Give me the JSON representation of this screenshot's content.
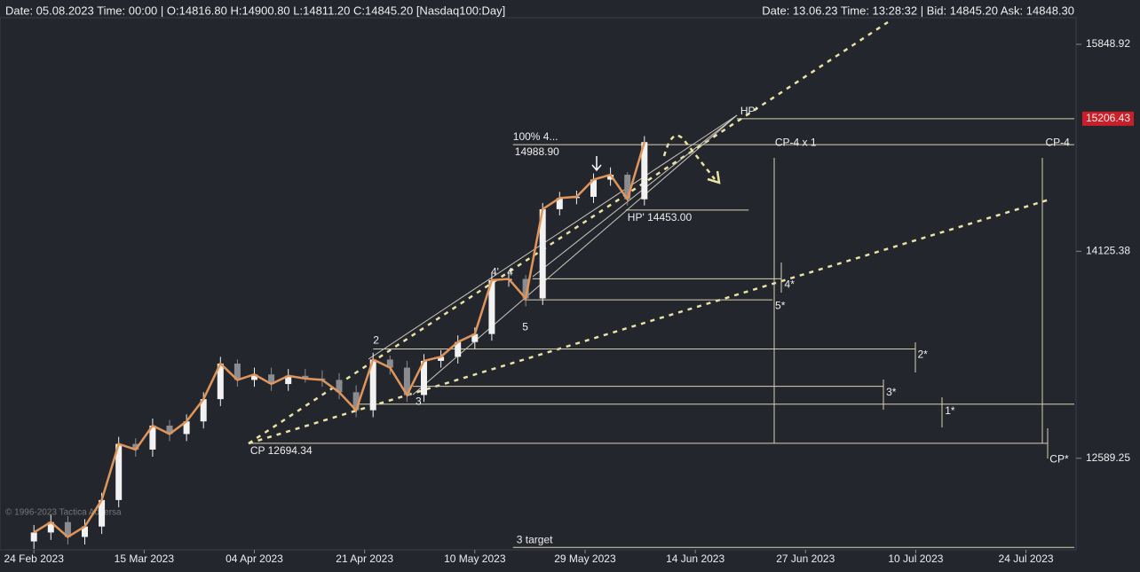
{
  "header": {
    "left": "Date: 05.08.2023 Time: 00:00 | O:14816.80 H:14900.80 L:14811.20 C:14845.20  [Nasdaq100:Day]",
    "right": "Date: 13.06.23 Time: 13:28:32 | Bid: 14845.20 Ask: 14848.30",
    "copyright": "© 1996-2023 Tactica Adversa"
  },
  "chart_data": {
    "type": "candlestick",
    "log_scale": true,
    "x": [
      0,
      2,
      4,
      6,
      8,
      10,
      12,
      14,
      16,
      18,
      20,
      22,
      24,
      26,
      28,
      30,
      32,
      34,
      36,
      38,
      40,
      42,
      44,
      46,
      48,
      50,
      52,
      54,
      56,
      58,
      60,
      62,
      64,
      66,
      68,
      70,
      72
    ],
    "open": [
      12020,
      12080,
      12150,
      12050,
      12120,
      12300,
      12690,
      12650,
      12820,
      12760,
      12850,
      13010,
      13270,
      13150,
      13190,
      13120,
      13180,
      13160,
      13150,
      13060,
      12930,
      13300,
      13240,
      13040,
      13290,
      13320,
      13430,
      13490,
      13900,
      13910,
      13760,
      14460,
      14550,
      14560,
      14700,
      14740,
      14540
    ],
    "high": [
      12130,
      12200,
      12190,
      12170,
      12350,
      12740,
      12730,
      12870,
      12860,
      12900,
      13060,
      13320,
      13300,
      13240,
      13240,
      13230,
      13230,
      13220,
      13200,
      13110,
      13350,
      13330,
      13290,
      13340,
      13370,
      13480,
      13540,
      13950,
      13960,
      13940,
      14510,
      14600,
      14610,
      14750,
      14800,
      14760,
      15060
    ],
    "low": [
      11970,
      12030,
      12000,
      12000,
      12070,
      12250,
      12600,
      12600,
      12710,
      12710,
      12800,
      12960,
      13100,
      13100,
      13070,
      13070,
      13130,
      13100,
      13010,
      12880,
      12880,
      13190,
      12990,
      12990,
      13240,
      13270,
      13380,
      13440,
      13850,
      13700,
      13710,
      14410,
      14500,
      14510,
      14650,
      14490,
      14490
    ],
    "close": [
      12080,
      12150,
      12050,
      12120,
      12300,
      12690,
      12650,
      12820,
      12760,
      12850,
      13010,
      13270,
      13150,
      13190,
      13120,
      13180,
      13160,
      13150,
      13060,
      12930,
      13300,
      13240,
      13040,
      13290,
      13320,
      13430,
      13490,
      13900,
      13910,
      13760,
      14460,
      14550,
      14560,
      14700,
      14740,
      14540,
      15010
    ],
    "up_color": "#f2f2f2",
    "down_color": "#8a8c92",
    "line_color": "#e0955a",
    "ylim": [
      11964,
      16085
    ],
    "yticks": [
      15848.92,
      14125.38,
      12589.25
    ],
    "current_price": {
      "value": 15206.43,
      "label": "15206.43"
    },
    "xlim": [
      -4,
      122.7
    ],
    "xticks": [
      {
        "value": 0,
        "label": "24 Feb 2023"
      },
      {
        "value": 13,
        "label": "15 Mar 2023"
      },
      {
        "value": 26,
        "label": "04 Apr 2023"
      },
      {
        "value": 39,
        "label": "21 Apr 2023"
      },
      {
        "value": 52,
        "label": "10 May 2023"
      },
      {
        "value": 65,
        "label": "29 May 2023"
      },
      {
        "value": 78,
        "label": "14 Jun 2023"
      },
      {
        "value": 91,
        "label": "27 Jun 2023"
      },
      {
        "value": 104,
        "label": "10 Jul 2023"
      },
      {
        "value": 117,
        "label": "24 Jul 2023"
      }
    ],
    "levels": [
      {
        "value": 15206.43,
        "start": 82.9,
        "end": 122.7,
        "label": "HP'",
        "anchor": "start-above"
      },
      {
        "value": 14988.9,
        "start": 56.5,
        "end": 122.7,
        "label": "14988.90",
        "anchor": "start-below"
      },
      {
        "value": 14453,
        "start": 69.8,
        "end": 84.3,
        "label": "HP' 14453.00",
        "anchor": "start-below"
      },
      {
        "value": 13911,
        "start": 58.8,
        "end": 88.2,
        "label": "4*",
        "anchor": "end"
      },
      {
        "value": 13749,
        "start": 57.8,
        "end": 87.1,
        "label": "5*",
        "anchor": "end"
      },
      {
        "value": 13378,
        "start": 40,
        "end": 103.9,
        "label": "2*",
        "anchor": "end"
      },
      {
        "value": 13103,
        "start": 44.7,
        "end": 100.2,
        "label": "3*",
        "anchor": "end"
      },
      {
        "value": 12974,
        "start": 37.9,
        "end": 122.7,
        "label": "1*",
        "anchor": "mid"
      },
      {
        "value": 12694.34,
        "start": 25.3,
        "end": 119.6,
        "label": "CP  12694.34",
        "anchor": "start-below"
      },
      {
        "value": 11980,
        "start": 56.5,
        "end": 122.7,
        "label": "3 target",
        "anchor": "start-above"
      }
    ],
    "annotations": [
      {
        "text": "100%  4...",
        "x": 56.5,
        "y": 15050
      },
      {
        "text": "2",
        "x": 40,
        "y": 13440
      },
      {
        "text": "3",
        "x": 45,
        "y": 12990
      },
      {
        "text": "4'",
        "x": 53.9,
        "y": 13960
      },
      {
        "text": "4",
        "x": 55.8,
        "y": 13960
      },
      {
        "text": "5",
        "x": 57.6,
        "y": 13540
      },
      {
        "text": "CP-4 x 1",
        "x": 87.4,
        "y": 15000
      },
      {
        "text": "CP-4",
        "x": 119.3,
        "y": 15000
      },
      {
        "text": "CP*",
        "x": 119.8,
        "y": 12580
      }
    ]
  }
}
